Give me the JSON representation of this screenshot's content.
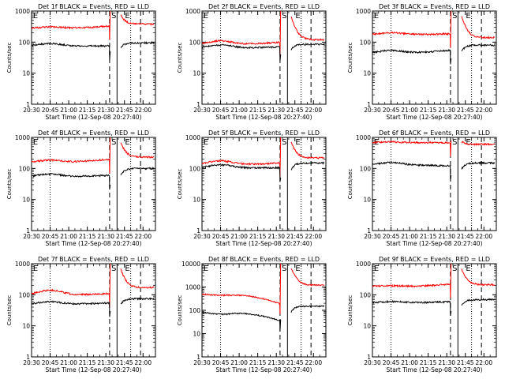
{
  "chart_data": {
    "type": "line",
    "x_axis": {
      "range": [
        "20:30",
        "22:10"
      ],
      "tick_labels": [
        "20:30",
        "20:45",
        "21:00",
        "21:15",
        "21:30",
        "21:45",
        "22:00"
      ],
      "label": "Start Time (12-Sep-08 20:27:40)"
    },
    "y_axis": {
      "label": "Counts/sec",
      "scale": "log"
    },
    "line_colors": {
      "events": "#000000",
      "lld": "#ff0000"
    },
    "vertical_markers": [
      {
        "time": "20:45",
        "style": "dotted",
        "label": ""
      },
      {
        "time": "21:33",
        "style": "dashed",
        "label": ""
      },
      {
        "time": "21:39",
        "style": "solid",
        "label": "S"
      },
      {
        "time": "21:50",
        "style": "dotted",
        "label": "E"
      },
      {
        "time": "21:58",
        "style": "dashed",
        "label": ""
      }
    ],
    "panels": [
      {
        "title": "Det 1f BLACK = Events, RED = LLD",
        "ylim": [
          1,
          1000
        ],
        "y_ticks": [
          "1",
          "10",
          "100",
          "1000"
        ],
        "events": {
          "base": 75,
          "hump": 1.2,
          "end_pre": 75,
          "jump": 50,
          "post": 95
        },
        "lld": {
          "base": 280,
          "hump": 1.1,
          "end_pre": 330,
          "jump": 1000,
          "post": 380
        }
      },
      {
        "title": "Det 2f BLACK = Events, RED = LLD",
        "ylim": [
          1,
          1000
        ],
        "y_ticks": [
          "1",
          "10",
          "100",
          "1000"
        ],
        "events": {
          "base": 65,
          "hump": 1.25,
          "end_pre": 70,
          "jump": 40,
          "post": 85
        },
        "lld": {
          "base": 85,
          "hump": 1.3,
          "end_pre": 100,
          "jump": 1000,
          "post": 120
        }
      },
      {
        "title": "Det 3f BLACK = Events, RED = LLD",
        "ylim": [
          1,
          1000
        ],
        "y_ticks": [
          "1",
          "10",
          "100",
          "1000"
        ],
        "events": {
          "base": 45,
          "hump": 1.2,
          "end_pre": 55,
          "jump": 30,
          "post": 80
        },
        "lld": {
          "base": 175,
          "hump": 1.15,
          "end_pre": 185,
          "jump": 1000,
          "post": 140
        }
      },
      {
        "title": "Det 4f BLACK = Events, RED = LLD",
        "ylim": [
          1,
          1000
        ],
        "y_ticks": [
          "1",
          "10",
          "100",
          "1000"
        ],
        "events": {
          "base": 55,
          "hump": 1.2,
          "end_pre": 60,
          "jump": 30,
          "post": 100
        },
        "lld": {
          "base": 160,
          "hump": 1.15,
          "end_pre": 200,
          "jump": 1000,
          "post": 230
        }
      },
      {
        "title": "Det 5f BLACK = Events, RED = LLD",
        "ylim": [
          1,
          1000
        ],
        "y_ticks": [
          "1",
          "10",
          "100",
          "1000"
        ],
        "events": {
          "base": 105,
          "hump": 1.25,
          "end_pre": 105,
          "jump": 50,
          "post": 150
        },
        "lld": {
          "base": 135,
          "hump": 1.3,
          "end_pre": 150,
          "jump": 1000,
          "post": 220
        }
      },
      {
        "title": "Det 6f BLACK = Events, RED = LLD",
        "ylim": [
          1,
          1000
        ],
        "y_ticks": [
          "1",
          "10",
          "100",
          "1000"
        ],
        "events": {
          "base": 130,
          "hump": 1.2,
          "end_pre": 120,
          "jump": 60,
          "post": 150
        },
        "lld": {
          "base": 680,
          "hump": 1.05,
          "end_pre": 680,
          "jump": 800,
          "post": 600
        }
      },
      {
        "title": "Det 7f BLACK = Events, RED = LLD",
        "ylim": [
          1,
          1000
        ],
        "y_ticks": [
          "1",
          "10",
          "100",
          "1000"
        ],
        "events": {
          "base": 50,
          "hump": 1.2,
          "end_pre": 55,
          "jump": 30,
          "post": 75
        },
        "lld": {
          "base": 100,
          "hump": 1.4,
          "end_pre": 110,
          "jump": 1000,
          "post": 170
        }
      },
      {
        "title": "Det 8f BLACK = Events, RED = LLD",
        "ylim": [
          1,
          10000
        ],
        "y_ticks": [
          "1",
          "10",
          "100",
          "1000",
          "10000"
        ],
        "events": {
          "base": 85,
          "hump": 0.8,
          "end_pre": 35,
          "jump": 40,
          "post": 150
        },
        "lld": {
          "base": 500,
          "hump": 0.9,
          "end_pre": 190,
          "jump": 10000,
          "post": 1200
        }
      },
      {
        "title": "Det 9f BLACK = Events, RED = LLD",
        "ylim": [
          1,
          1000
        ],
        "y_ticks": [
          "1",
          "10",
          "100",
          "1000"
        ],
        "events": {
          "base": 55,
          "hump": 1.1,
          "end_pre": 60,
          "jump": 30,
          "post": 70
        },
        "lld": {
          "base": 185,
          "hump": 1.05,
          "end_pre": 220,
          "jump": 1000,
          "post": 210
        }
      }
    ]
  }
}
